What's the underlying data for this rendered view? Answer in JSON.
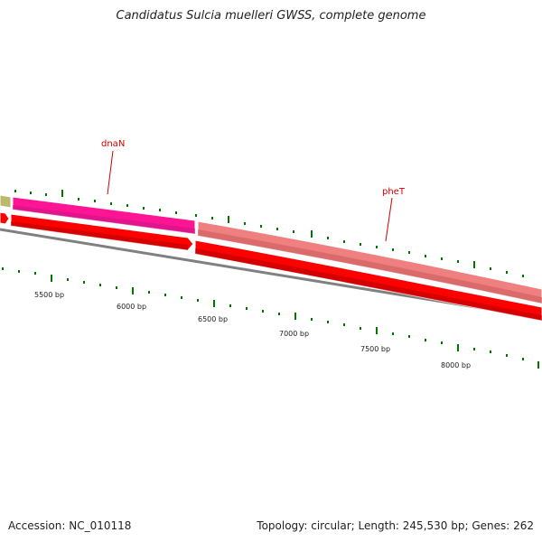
{
  "header": {
    "title": "Candidatus Sulcia muelleri GWSS, complete genome"
  },
  "footer": {
    "accession": "Accession: NC_010118",
    "summary": "Topology: circular; Length: 245,530 bp; Genes: 262"
  },
  "genome_map": {
    "scale_labels": [
      "5500 bp",
      "6000 bp",
      "6500 bp",
      "7000 bp",
      "7500 bp",
      "8000 bp"
    ],
    "genes": [
      {
        "name": "dnaN",
        "color": "#ff1493"
      },
      {
        "name": "pheT",
        "color": "#f08080"
      }
    ],
    "colors": {
      "label": "#cc0000",
      "tick": "#007700",
      "backbone": "#808080",
      "cds": "#ff0000",
      "olive_feature": "#bdb76b"
    }
  }
}
